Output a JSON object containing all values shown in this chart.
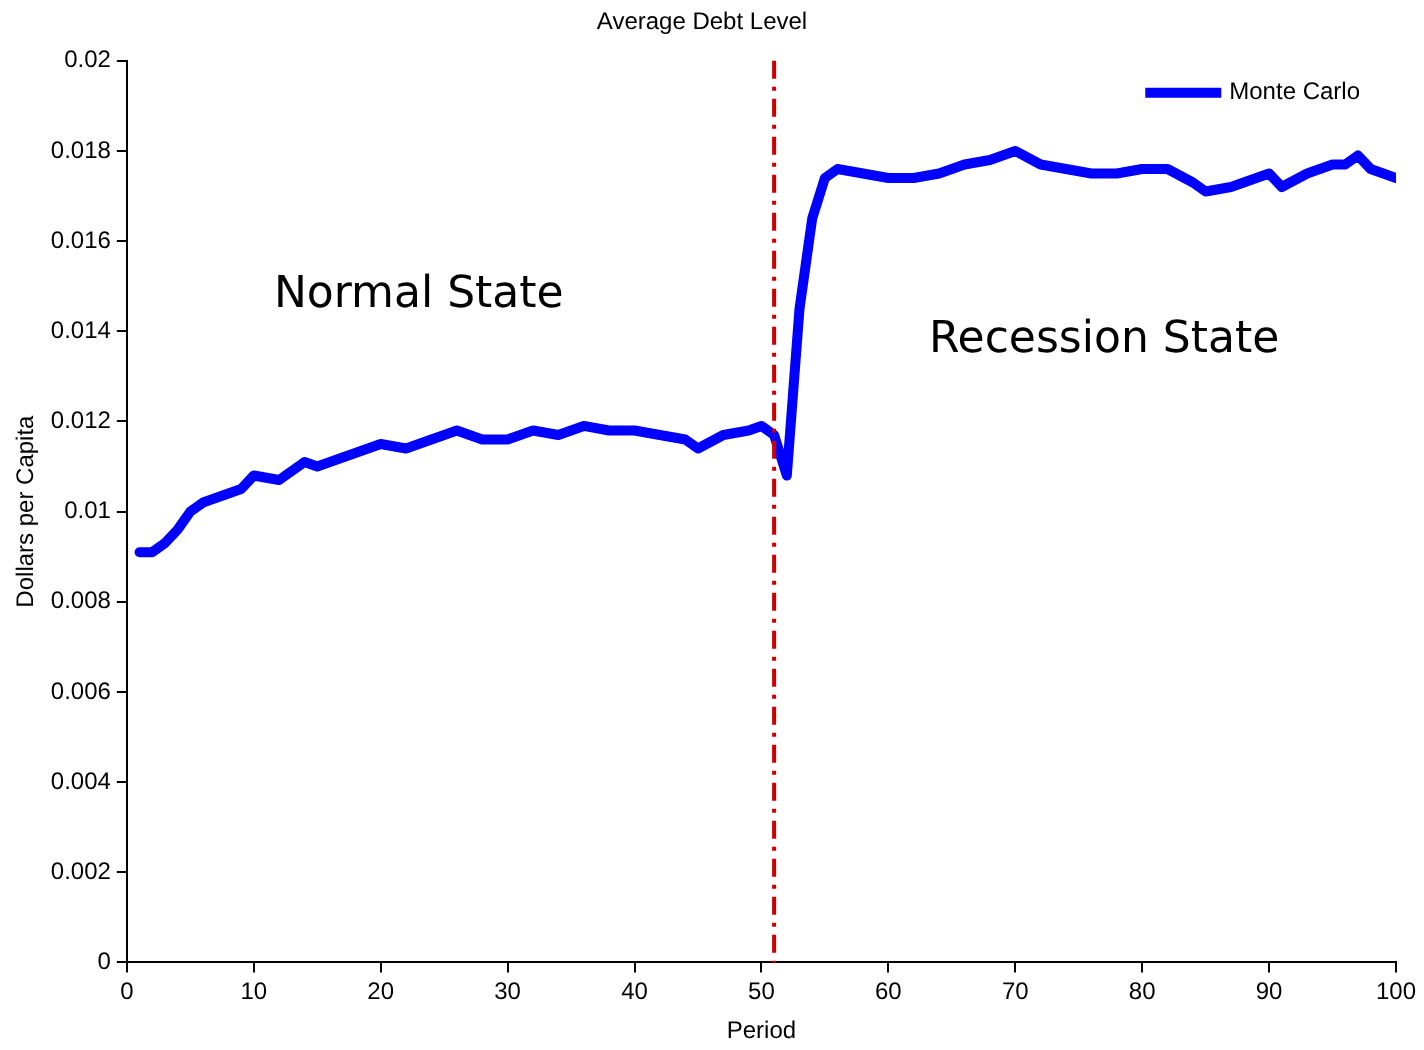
{
  "chart_data": {
    "type": "line",
    "title": "Average Debt Level",
    "xlabel": "Period",
    "ylabel": "Dollars per Capita",
    "annotations": [
      "Normal State",
      "Recession State"
    ],
    "series": [
      {
        "name": "Monte Carlo",
        "color": "#0000ff",
        "x": [
          1,
          2,
          3,
          4,
          5,
          6,
          8,
          9,
          10,
          12,
          14,
          15,
          17,
          20,
          22,
          24,
          26,
          28,
          30,
          32,
          34,
          36,
          38,
          40,
          42,
          44,
          45,
          47,
          49,
          50,
          51,
          52,
          53,
          54,
          55,
          56,
          58,
          60,
          62,
          64,
          66,
          68,
          70,
          72,
          74,
          76,
          78,
          80,
          82,
          84,
          85,
          87,
          89,
          90,
          91,
          93,
          95,
          96,
          97,
          98,
          99,
          100
        ],
        "values": [
          0.0091,
          0.0091,
          0.0093,
          0.0096,
          0.01,
          0.0102,
          0.0104,
          0.0105,
          0.0108,
          0.0107,
          0.0111,
          0.011,
          0.0112,
          0.0115,
          0.0114,
          0.0116,
          0.0118,
          0.0116,
          0.0116,
          0.0118,
          0.0117,
          0.0119,
          0.0118,
          0.0118,
          0.0117,
          0.0116,
          0.0114,
          0.0117,
          0.0118,
          0.0119,
          0.0117,
          0.0108,
          0.0145,
          0.0165,
          0.0174,
          0.0176,
          0.0175,
          0.0174,
          0.0174,
          0.0175,
          0.0177,
          0.0178,
          0.018,
          0.0177,
          0.0176,
          0.0175,
          0.0175,
          0.0176,
          0.0176,
          0.0173,
          0.0171,
          0.0172,
          0.0174,
          0.0175,
          0.0172,
          0.0175,
          0.0177,
          0.0177,
          0.0179,
          0.0176,
          0.0175,
          0.0174
        ]
      }
    ],
    "ref_lines": [
      {
        "axis": "x",
        "value": 51,
        "color": "#cc0000",
        "line_style": "dashdot"
      }
    ],
    "xlim": [
      0,
      100
    ],
    "xticks": [
      0,
      10,
      20,
      30,
      40,
      50,
      60,
      70,
      80,
      90,
      100
    ],
    "ylim": [
      0,
      0.02
    ],
    "yticks": [
      0,
      0.002,
      0.004,
      0.006,
      0.008,
      0.01,
      0.012,
      0.014,
      0.016,
      0.018,
      0.02
    ],
    "grid": false,
    "legend": "top right",
    "marker": "none",
    "line_style": "solid"
  }
}
